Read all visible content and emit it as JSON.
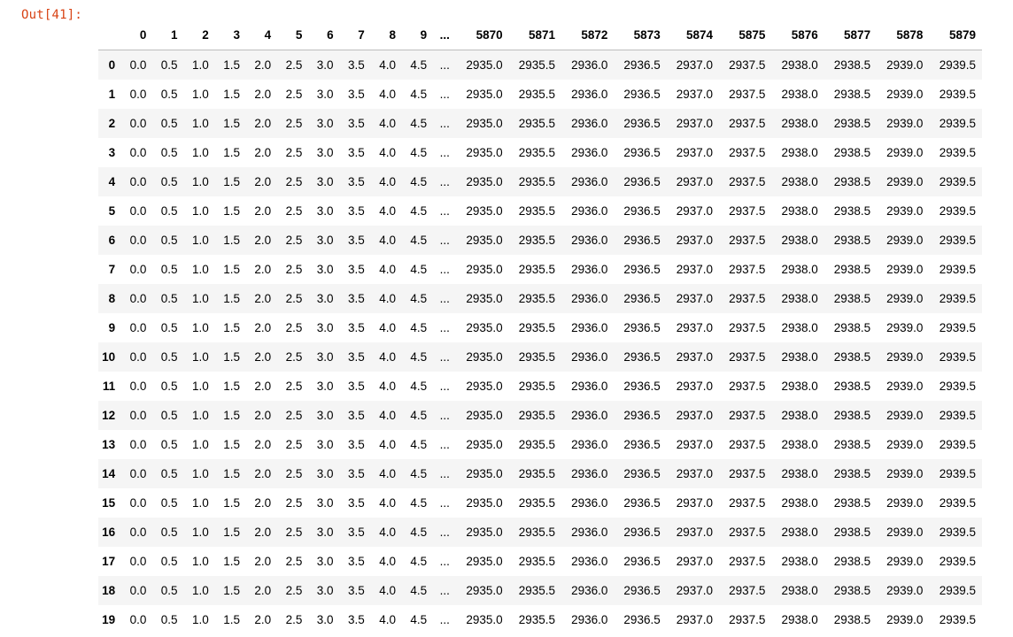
{
  "cell": {
    "prompt": "Out[41]:"
  },
  "dataframe": {
    "columns_left": [
      "0",
      "1",
      "2",
      "3",
      "4",
      "5",
      "6",
      "7",
      "8",
      "9"
    ],
    "ellipsis": "...",
    "columns_right": [
      "5870",
      "5871",
      "5872",
      "5873",
      "5874",
      "5875",
      "5876",
      "5877",
      "5878",
      "5879"
    ],
    "row_index": [
      "0",
      "1",
      "2",
      "3",
      "4",
      "5",
      "6",
      "7",
      "8",
      "9",
      "10",
      "11",
      "12",
      "13",
      "14",
      "15",
      "16",
      "17",
      "18",
      "19"
    ],
    "row_values_left": [
      "0.0",
      "0.5",
      "1.0",
      "1.5",
      "2.0",
      "2.5",
      "3.0",
      "3.5",
      "4.0",
      "4.5"
    ],
    "row_values_right": [
      "2935.0",
      "2935.5",
      "2936.0",
      "2936.5",
      "2937.0",
      "2937.5",
      "2938.0",
      "2938.5",
      "2939.0",
      "2939.5"
    ]
  }
}
